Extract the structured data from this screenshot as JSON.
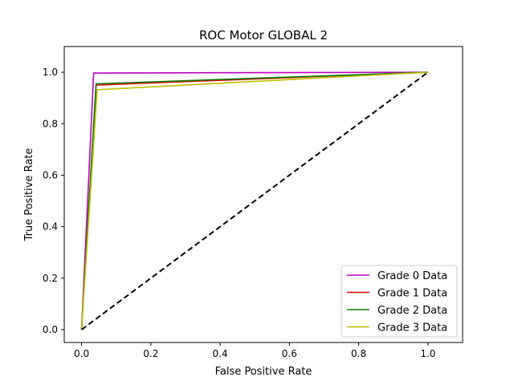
{
  "chart_data": {
    "type": "line",
    "title": "ROC Motor GLOBAL 2",
    "xlabel": "False Positive Rate",
    "ylabel": "True Positive Rate",
    "xlim": [
      -0.05,
      1.1
    ],
    "ylim": [
      -0.05,
      1.1
    ],
    "xticks": [
      0.0,
      0.2,
      0.4,
      0.6,
      0.8,
      1.0
    ],
    "yticks": [
      0.0,
      0.2,
      0.4,
      0.6,
      0.8,
      1.0
    ],
    "xtick_labels": [
      "0.0",
      "0.2",
      "0.4",
      "0.6",
      "0.8",
      "1.0"
    ],
    "ytick_labels": [
      "0.0",
      "0.2",
      "0.4",
      "0.6",
      "0.8",
      "1.0"
    ],
    "grid": false,
    "legend_position": "lower-right",
    "series": [
      {
        "name": "Grade 0 Data",
        "color": "#bf00bf",
        "x": [
          0.0,
          0.035,
          1.0
        ],
        "y": [
          0.0,
          0.997,
          1.0
        ]
      },
      {
        "name": "Grade 1 Data",
        "color": "#ff0000",
        "x": [
          0.0,
          0.042,
          1.0
        ],
        "y": [
          0.0,
          0.95,
          1.0
        ]
      },
      {
        "name": "Grade 2 Data",
        "color": "#008000",
        "x": [
          0.0,
          0.042,
          1.0
        ],
        "y": [
          0.0,
          0.955,
          1.0
        ]
      },
      {
        "name": "Grade 3 Data",
        "color": "#bfbf00",
        "x": [
          0.0,
          0.045,
          1.0
        ],
        "y": [
          0.0,
          0.932,
          1.0
        ]
      }
    ],
    "reference_line": {
      "x": [
        0.0,
        1.0
      ],
      "y": [
        0.0,
        1.0
      ],
      "color": "#000000",
      "style": "dashed"
    }
  }
}
